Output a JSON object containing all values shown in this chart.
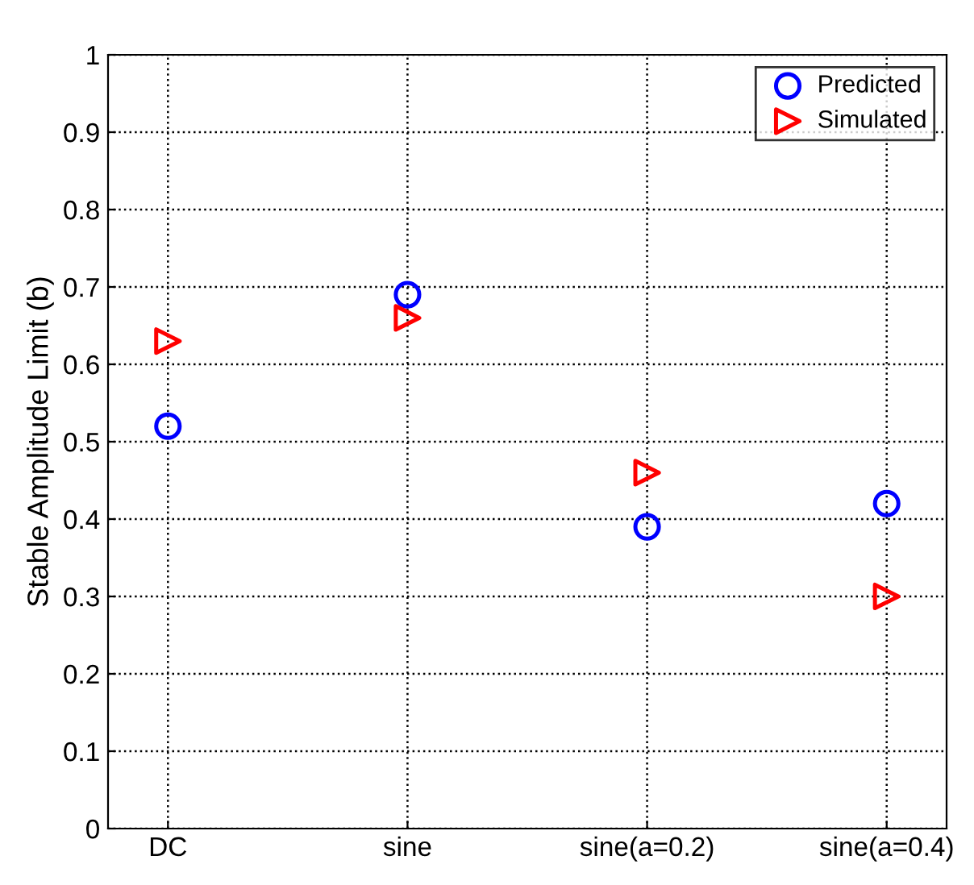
{
  "chart_data": {
    "type": "scatter",
    "ylabel": "Stable Amplitude Limit (b)",
    "categories": [
      "DC",
      "sine",
      "sine(a=0.2)",
      "sine(a=0.4)"
    ],
    "series": [
      {
        "name": "Predicted",
        "color": "#0000ff",
        "marker": "circle",
        "values": [
          0.52,
          0.69,
          0.39,
          0.42
        ]
      },
      {
        "name": "Simulated",
        "color": "#ff0000",
        "marker": "triangle",
        "values": [
          0.63,
          0.66,
          0.46,
          0.3
        ]
      }
    ],
    "ylim": [
      0,
      1
    ],
    "yticks": [
      0,
      0.1,
      0.2,
      0.3,
      0.4,
      0.5,
      0.6,
      0.7,
      0.8,
      0.9,
      1
    ],
    "grid": true,
    "legend": "top right"
  }
}
